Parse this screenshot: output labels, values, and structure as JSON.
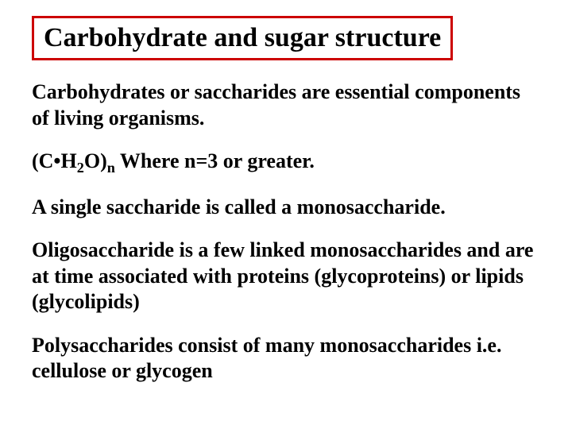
{
  "title": "Carbohydrate and sugar structure",
  "paragraphs": {
    "p1": "Carbohydrates or saccharides are essential components of living organisms.",
    "p2_prefix": "(C•H",
    "p2_sub1": "2",
    "p2_mid": "O)",
    "p2_sub2": "n",
    "p2_suffix": " Where n=3 or greater.",
    "p3": "A single saccharide is called a monosaccharide.",
    "p4": "Oligosaccharide is a few linked monosaccharides and are at time associated with proteins (glycoproteins) or lipids (glycolipids)",
    "p5": "Polysaccharides consist of many monosaccharides i.e. cellulose or glycogen"
  },
  "colors": {
    "title_border": "#cc0000",
    "text": "#000000",
    "background": "#ffffff"
  },
  "typography": {
    "title_fontsize": 34,
    "body_fontsize": 26,
    "font_family": "Times New Roman",
    "font_weight": "bold"
  }
}
